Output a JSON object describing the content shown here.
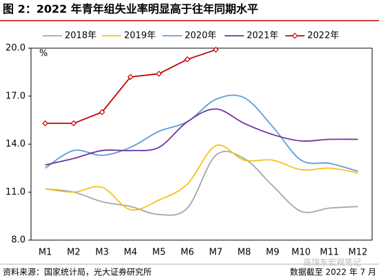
{
  "chart_data": {
    "type": "line",
    "title": "图 2：2022 年青年组失业率明显高于往年同期水平",
    "y_unit": "%",
    "categories": [
      "M1",
      "M2",
      "M3",
      "M4",
      "M5",
      "M6",
      "M7",
      "M8",
      "M9",
      "M10",
      "M11",
      "M12"
    ],
    "series": [
      {
        "name": "2018年",
        "color": "#a6a6a6",
        "smooth": true,
        "values": [
          11.2,
          11.0,
          10.4,
          10.1,
          9.6,
          10.0,
          13.3,
          13.1,
          11.4,
          9.8,
          10.0,
          10.1
        ]
      },
      {
        "name": "2019年",
        "color": "#f5c118",
        "smooth": true,
        "values": [
          11.2,
          11.0,
          11.3,
          9.9,
          10.5,
          11.5,
          13.9,
          13.0,
          13.0,
          12.4,
          12.5,
          12.2
        ]
      },
      {
        "name": "2020年",
        "color": "#5b9bd5",
        "smooth": true,
        "values": [
          12.5,
          13.6,
          13.3,
          13.8,
          14.8,
          15.4,
          16.8,
          16.9,
          15.1,
          13.0,
          12.8,
          12.3
        ]
      },
      {
        "name": "2021年",
        "color": "#7030a0",
        "smooth": true,
        "values": [
          12.7,
          13.1,
          13.6,
          13.6,
          13.8,
          15.4,
          16.2,
          15.3,
          14.6,
          14.2,
          14.3,
          14.3
        ]
      },
      {
        "name": "2022年",
        "color": "#c00000",
        "smooth": false,
        "marker": "diamond",
        "values": [
          15.3,
          15.3,
          16.0,
          18.2,
          18.4,
          19.3,
          19.9,
          null,
          null,
          null,
          null,
          null
        ]
      }
    ],
    "ylim": [
      8.0,
      20.0
    ],
    "yticks": [
      {
        "value": 8,
        "label": "8.0"
      },
      {
        "value": 11,
        "label": "11.0"
      },
      {
        "value": 14,
        "label": "14.0"
      },
      {
        "value": 17,
        "label": "17.0"
      },
      {
        "value": 20,
        "label": "20.0"
      }
    ],
    "legend": "top",
    "source": "资料来源：国家统计局，光大证券研究所",
    "note": "数据截至 2022 年 7 月",
    "watermark": "高瑞东宏观笔记"
  }
}
